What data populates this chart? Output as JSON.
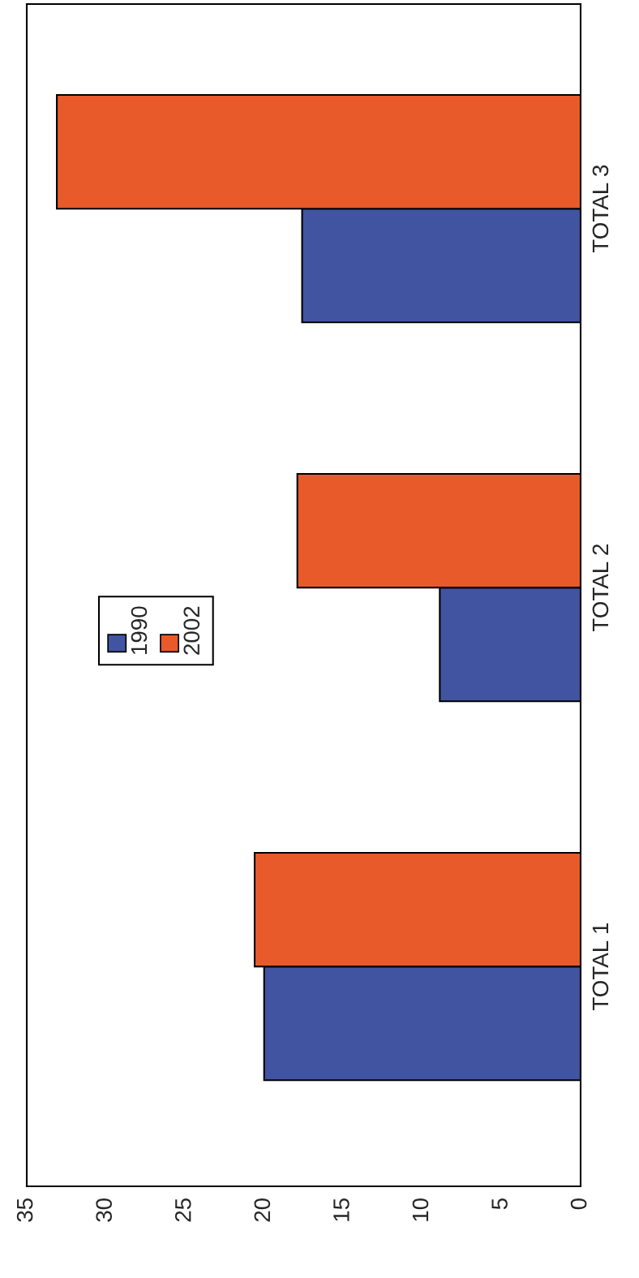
{
  "chart_data": {
    "type": "bar",
    "orientation": "horizontal",
    "categories": [
      "TOTAL 3",
      "TOTAL 2",
      "TOTAL 1"
    ],
    "series": [
      {
        "name": "1990",
        "color": "#4154a2",
        "values": [
          17.6,
          8.9,
          20
        ]
      },
      {
        "name": "2002",
        "color": "#e85a2a",
        "values": [
          33.1,
          17.9,
          20.6
        ]
      }
    ],
    "xlim": [
      35,
      0
    ],
    "xticks": [
      0,
      5,
      10,
      15,
      20,
      25,
      30,
      35
    ],
    "grid": false,
    "legend": "left"
  }
}
